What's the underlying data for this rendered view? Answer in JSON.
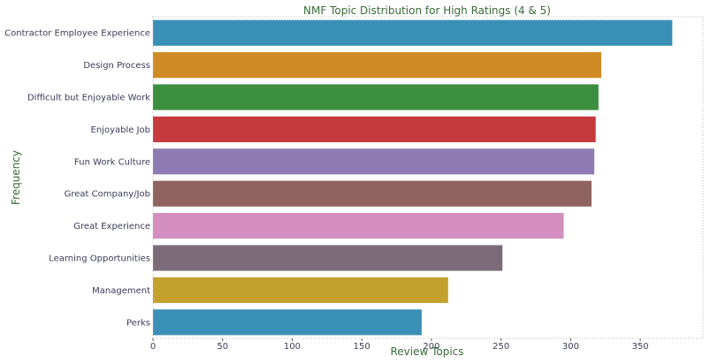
{
  "chart_data": {
    "type": "bar",
    "orientation": "horizontal",
    "title": "NMF Topic Distribution for High Ratings (4 & 5)",
    "xlabel": "Review Topics",
    "ylabel": "Frequency",
    "xlim": [
      0,
      395
    ],
    "xticks": [
      0,
      50,
      100,
      150,
      200,
      250,
      300,
      350
    ],
    "grid": false,
    "legend": "none",
    "categories": [
      "Contractor Employee Experience",
      "Design Process",
      "Difficult but Enjoyable Work",
      "Enjoyable Job",
      "Fun Work Culture",
      "Great Company/Job",
      "Great Experience",
      "Learning Opportunities",
      "Management",
      "Perks"
    ],
    "values": [
      373,
      322,
      320,
      318,
      317,
      315,
      295,
      251,
      212,
      193
    ],
    "colors": [
      "#3a8fb7",
      "#d08b26",
      "#3b8f3e",
      "#c63a3e",
      "#8e7bb3",
      "#8f6460",
      "#d48fc0",
      "#7c6c7a",
      "#c3a12c",
      "#3a8fb7"
    ]
  }
}
